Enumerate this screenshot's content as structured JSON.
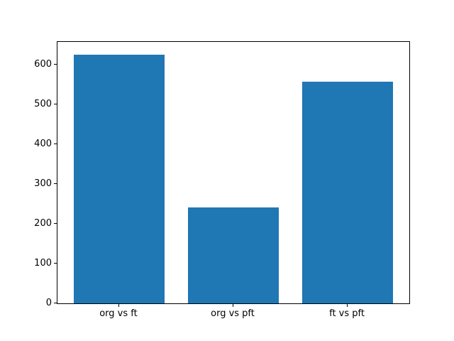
{
  "chart_data": {
    "type": "bar",
    "categories": [
      "org vs ft",
      "org vs pft",
      "ft vs pft"
    ],
    "values": [
      625,
      240,
      556
    ],
    "title": "",
    "xlabel": "",
    "ylabel": "",
    "ylim": [
      0,
      656.25
    ],
    "xlim": [
      -0.54,
      2.54
    ],
    "yticks": [
      0,
      100,
      200,
      300,
      400,
      500,
      600
    ],
    "ytick_labels": [
      "0",
      "100",
      "200",
      "300",
      "400",
      "500",
      "600"
    ],
    "bar_width_units": 0.8,
    "grid": false,
    "legend": null,
    "colors": {
      "bar": "#1f77b4",
      "spine": "#000000",
      "tick_text": "#000000",
      "background": "#ffffff"
    }
  }
}
